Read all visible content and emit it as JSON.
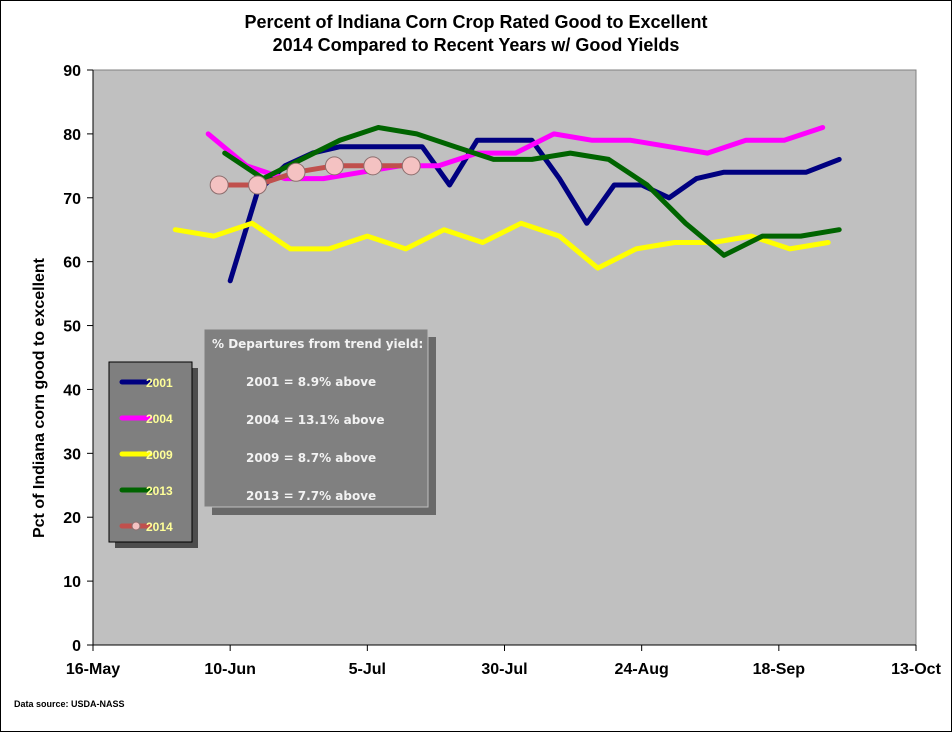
{
  "chart_data": {
    "type": "line",
    "title": "Percent of Indiana Corn Crop Rated Good to Excellent",
    "subtitle": "2014 Compared to Recent Years w/ Good Yields",
    "xlabel": "",
    "ylabel": "Pct of Indiana corn good to excellent",
    "ylim": [
      0,
      90
    ],
    "yticks": [
      0,
      10,
      20,
      30,
      40,
      50,
      60,
      70,
      80,
      90
    ],
    "xlim_days": [
      0,
      150
    ],
    "xticks": [
      {
        "day": 0,
        "label": "16-May"
      },
      {
        "day": 25,
        "label": "10-Jun"
      },
      {
        "day": 50,
        "label": "5-Jul"
      },
      {
        "day": 75,
        "label": "30-Jul"
      },
      {
        "day": 100,
        "label": "24-Aug"
      },
      {
        "day": 125,
        "label": "18-Sep"
      },
      {
        "day": 150,
        "label": "13-Oct"
      }
    ],
    "series": [
      {
        "name": "2001",
        "color": "#000080",
        "marker": false,
        "x": [
          25,
          30,
          35,
          40,
          45,
          50,
          55,
          60,
          65,
          70,
          75,
          80,
          85,
          90,
          95,
          100,
          105,
          110,
          115,
          120,
          125,
          130,
          136
        ],
        "y": [
          57,
          71,
          75,
          77,
          78,
          78,
          78,
          78,
          72,
          79,
          79,
          79,
          73,
          66,
          72,
          72,
          70,
          73,
          74,
          74,
          74,
          74,
          76
        ]
      },
      {
        "name": "2004",
        "color": "#ff00ff",
        "marker": false,
        "x": [
          21,
          28,
          35,
          42,
          49,
          56,
          63,
          70,
          77,
          84,
          91,
          98,
          105,
          112,
          119,
          126,
          133
        ],
        "y": [
          80,
          75,
          73,
          73,
          74,
          75,
          75,
          77,
          77,
          80,
          79,
          79,
          78,
          77,
          79,
          79,
          81
        ]
      },
      {
        "name": "2009",
        "color": "#ffff00",
        "marker": false,
        "x": [
          15,
          22,
          29,
          36,
          43,
          50,
          57,
          64,
          71,
          78,
          85,
          92,
          99,
          106,
          113,
          120,
          127,
          134
        ],
        "y": [
          65,
          64,
          66,
          62,
          62,
          64,
          62,
          65,
          63,
          66,
          64,
          59,
          62,
          63,
          63,
          64,
          62,
          63
        ]
      },
      {
        "name": "2013",
        "color": "#006400",
        "marker": false,
        "x": [
          24,
          31,
          38,
          45,
          52,
          59,
          66,
          73,
          80,
          87,
          94,
          101,
          108,
          115,
          122,
          129,
          136
        ],
        "y": [
          77,
          73,
          76,
          79,
          81,
          80,
          78,
          76,
          76,
          77,
          76,
          72,
          66,
          61,
          64,
          64,
          65
        ]
      },
      {
        "name": "2014",
        "color": "#c0504d",
        "marker": true,
        "x": [
          23,
          30,
          37,
          44,
          51,
          58
        ],
        "y": [
          72,
          72,
          74,
          75,
          75,
          75
        ]
      }
    ],
    "legend": {
      "placement": "lower-left",
      "entries": [
        "2001",
        "2004",
        "2009",
        "2013",
        "2014"
      ]
    },
    "annotation": {
      "heading": "% Departures from trend yield:",
      "lines": [
        "2001 = 8.9% above",
        "2004 = 13.1% above",
        "2009 = 8.7% above",
        "2013 = 7.7% above"
      ]
    },
    "plot_background": "#c0c0c0",
    "marker_fill": "#f4c2c2"
  },
  "footer": {
    "source": "Data source: USDA-NASS"
  }
}
